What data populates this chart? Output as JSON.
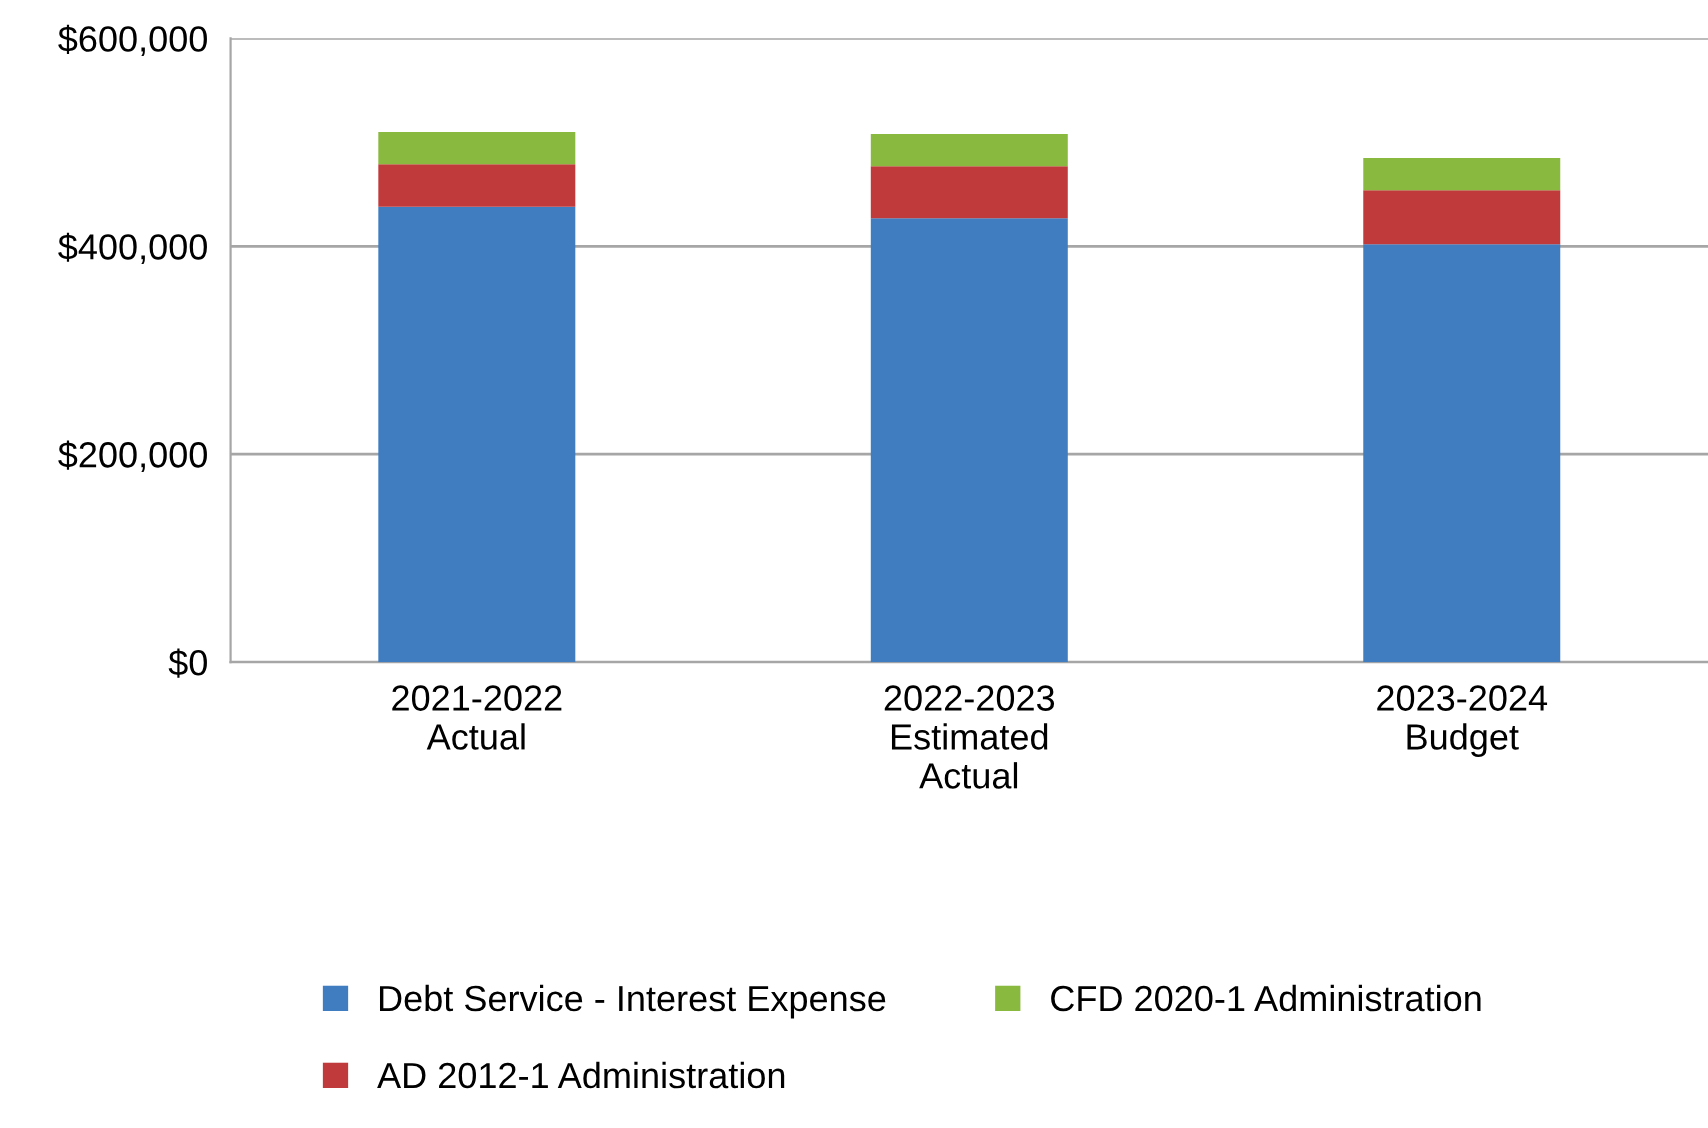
{
  "chart_data": {
    "type": "bar",
    "stacked": true,
    "categories": [
      "2021-2022\nActual",
      "2022-2023\nEstimated\nActual",
      "2023-2024\nBudget"
    ],
    "series": [
      {
        "name": "Debt Service - Interest Expense",
        "color": "#3f7cc0",
        "values": [
          438000,
          427000,
          402000
        ]
      },
      {
        "name": "AD 2012-1 Administration",
        "color": "#c0393b",
        "values": [
          41000,
          50000,
          52000
        ]
      },
      {
        "name": "CFD 2020-1 Administration",
        "color": "#8ab93f",
        "values": [
          31000,
          31000,
          31000
        ]
      }
    ],
    "ylim": [
      0,
      600000
    ],
    "yticks": [
      {
        "value": 0,
        "label": "$0"
      },
      {
        "value": 200000,
        "label": "$200,000"
      },
      {
        "value": 400000,
        "label": "$400,000"
      },
      {
        "value": 600000,
        "label": "$600,000"
      }
    ],
    "grid": "y",
    "legend": "bottom"
  }
}
